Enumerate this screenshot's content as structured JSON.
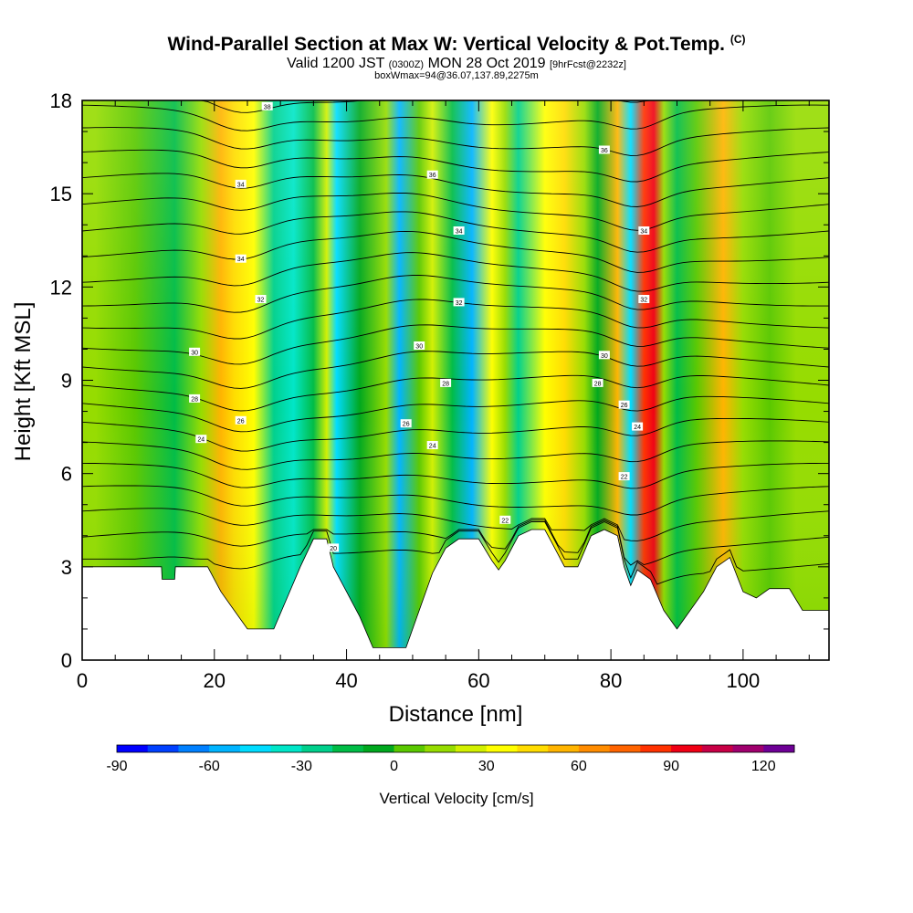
{
  "header": {
    "title_main": "Wind-Parallel Section at Max W: Vertical Velocity & Pot.Temp.",
    "title_mark": "(C)",
    "valid_prefix": "Valid 1200 JST",
    "valid_utc": "(0300Z)",
    "valid_date": "MON 28 Oct 2019",
    "forecast": "[9hrFcst@2232z]",
    "box_info": "boxWmax=94@36.07,137.89,2275m"
  },
  "chart_data": {
    "type": "heatmap",
    "xlabel": "Distance [nm]",
    "ylabel": "Height [Kft MSL]",
    "xlim": [
      0,
      113
    ],
    "ylim": [
      0,
      18
    ],
    "x_ticks": [
      0,
      20,
      40,
      60,
      80,
      100
    ],
    "y_ticks": [
      0,
      3,
      6,
      9,
      12,
      15,
      18
    ],
    "colorbar": {
      "title": "Vertical Velocity [cm/s]",
      "ticks": [
        -90,
        -60,
        -30,
        0,
        30,
        60,
        90,
        120
      ],
      "range": [
        -90,
        130
      ],
      "step": 10,
      "colors": [
        "#0000ff",
        "#0040ff",
        "#0080ff",
        "#00b4ff",
        "#00dcff",
        "#00e6c8",
        "#00d08c",
        "#00bc46",
        "#00a81e",
        "#5ac800",
        "#96dc00",
        "#d2f000",
        "#ffff00",
        "#ffdc00",
        "#ffb400",
        "#ff8c00",
        "#ff6400",
        "#ff3200",
        "#f00014",
        "#c80046",
        "#a0006e",
        "#6e0096"
      ]
    },
    "vertical_velocity_columns": [
      {
        "x": 2,
        "w": 14
      },
      {
        "x": 8,
        "w": 6
      },
      {
        "x": 14,
        "w": -12
      },
      {
        "x": 18,
        "w": 12
      },
      {
        "x": 21,
        "w": 58
      },
      {
        "x": 23,
        "w": 48
      },
      {
        "x": 26,
        "w": 36
      },
      {
        "x": 29,
        "w": -28
      },
      {
        "x": 32,
        "w": -38
      },
      {
        "x": 35,
        "w": -12
      },
      {
        "x": 37,
        "w": 28
      },
      {
        "x": 38.5,
        "w": -48
      },
      {
        "x": 42,
        "w": -4
      },
      {
        "x": 46,
        "w": 12
      },
      {
        "x": 48,
        "w": -60
      },
      {
        "x": 51,
        "w": 4
      },
      {
        "x": 53,
        "w": 22
      },
      {
        "x": 56,
        "w": -18
      },
      {
        "x": 59,
        "w": -54
      },
      {
        "x": 62,
        "w": 30
      },
      {
        "x": 64,
        "w": 18
      },
      {
        "x": 66,
        "w": -30
      },
      {
        "x": 70,
        "w": 38
      },
      {
        "x": 73,
        "w": 44
      },
      {
        "x": 76,
        "w": 18
      },
      {
        "x": 78,
        "w": -8
      },
      {
        "x": 81,
        "w": 55
      },
      {
        "x": 83,
        "w": -42
      },
      {
        "x": 85,
        "w": 80
      },
      {
        "x": 86.5,
        "w": 92
      },
      {
        "x": 88,
        "w": 18
      },
      {
        "x": 90,
        "w": -14
      },
      {
        "x": 93,
        "w": 8
      },
      {
        "x": 97,
        "w": 58
      },
      {
        "x": 100,
        "w": 10
      },
      {
        "x": 104,
        "w": 2
      },
      {
        "x": 108,
        "w": 10
      },
      {
        "x": 112,
        "w": 14
      }
    ],
    "terrain_height_kft": [
      [
        0,
        3.0
      ],
      [
        12,
        3.0
      ],
      [
        12.1,
        2.6
      ],
      [
        14,
        2.6
      ],
      [
        14.1,
        3.0
      ],
      [
        19,
        3.0
      ],
      [
        21,
        2.2
      ],
      [
        23,
        1.6
      ],
      [
        25,
        1.0
      ],
      [
        29,
        1.0
      ],
      [
        31,
        2.0
      ],
      [
        33,
        3.0
      ],
      [
        35,
        3.9
      ],
      [
        37,
        3.9
      ],
      [
        38,
        3.0
      ],
      [
        40,
        2.2
      ],
      [
        42,
        1.4
      ],
      [
        44,
        0.4
      ],
      [
        49,
        0.4
      ],
      [
        51,
        1.6
      ],
      [
        53,
        2.8
      ],
      [
        55,
        3.6
      ],
      [
        57,
        3.9
      ],
      [
        60,
        3.9
      ],
      [
        62,
        3.2
      ],
      [
        63,
        2.9
      ],
      [
        64,
        3.2
      ],
      [
        66,
        4.0
      ],
      [
        68,
        4.2
      ],
      [
        70,
        4.2
      ],
      [
        71,
        3.8
      ],
      [
        72,
        3.4
      ],
      [
        73,
        3.0
      ],
      [
        75,
        3.0
      ],
      [
        77,
        4.0
      ],
      [
        79,
        4.2
      ],
      [
        81,
        4.0
      ],
      [
        82,
        3.0
      ],
      [
        83,
        2.4
      ],
      [
        84,
        2.9
      ],
      [
        86,
        2.6
      ],
      [
        88,
        1.6
      ],
      [
        90,
        1.0
      ],
      [
        92,
        1.6
      ],
      [
        94,
        2.2
      ],
      [
        96,
        3.0
      ],
      [
        98,
        3.3
      ],
      [
        100,
        2.2
      ],
      [
        102,
        2.0
      ],
      [
        104,
        2.3
      ],
      [
        107,
        2.3
      ],
      [
        109,
        1.6
      ],
      [
        113,
        1.6
      ]
    ],
    "potential_temperature_labels": [
      {
        "x": 28,
        "y": 17.8,
        "text": "38"
      },
      {
        "x": 24,
        "y": 15.3,
        "text": "34"
      },
      {
        "x": 24,
        "y": 12.9,
        "text": "34"
      },
      {
        "x": 27,
        "y": 11.6,
        "text": "32"
      },
      {
        "x": 17,
        "y": 9.9,
        "text": "30"
      },
      {
        "x": 17,
        "y": 8.4,
        "text": "28"
      },
      {
        "x": 24,
        "y": 7.7,
        "text": "26"
      },
      {
        "x": 18,
        "y": 7.1,
        "text": "24"
      },
      {
        "x": 53,
        "y": 15.6,
        "text": "36"
      },
      {
        "x": 57,
        "y": 13.8,
        "text": "34"
      },
      {
        "x": 57,
        "y": 11.5,
        "text": "32"
      },
      {
        "x": 51,
        "y": 10.1,
        "text": "30"
      },
      {
        "x": 55,
        "y": 8.9,
        "text": "28"
      },
      {
        "x": 49,
        "y": 7.6,
        "text": "26"
      },
      {
        "x": 53,
        "y": 6.9,
        "text": "24"
      },
      {
        "x": 79,
        "y": 16.4,
        "text": "36"
      },
      {
        "x": 85,
        "y": 13.8,
        "text": "34"
      },
      {
        "x": 85,
        "y": 11.6,
        "text": "32"
      },
      {
        "x": 79,
        "y": 9.8,
        "text": "30"
      },
      {
        "x": 78,
        "y": 8.9,
        "text": "28"
      },
      {
        "x": 82,
        "y": 8.2,
        "text": "26"
      },
      {
        "x": 84,
        "y": 7.5,
        "text": "24"
      },
      {
        "x": 82,
        "y": 5.9,
        "text": "22"
      },
      {
        "x": 64,
        "y": 4.5,
        "text": "22"
      },
      {
        "x": 38,
        "y": 3.6,
        "text": "20"
      }
    ]
  }
}
